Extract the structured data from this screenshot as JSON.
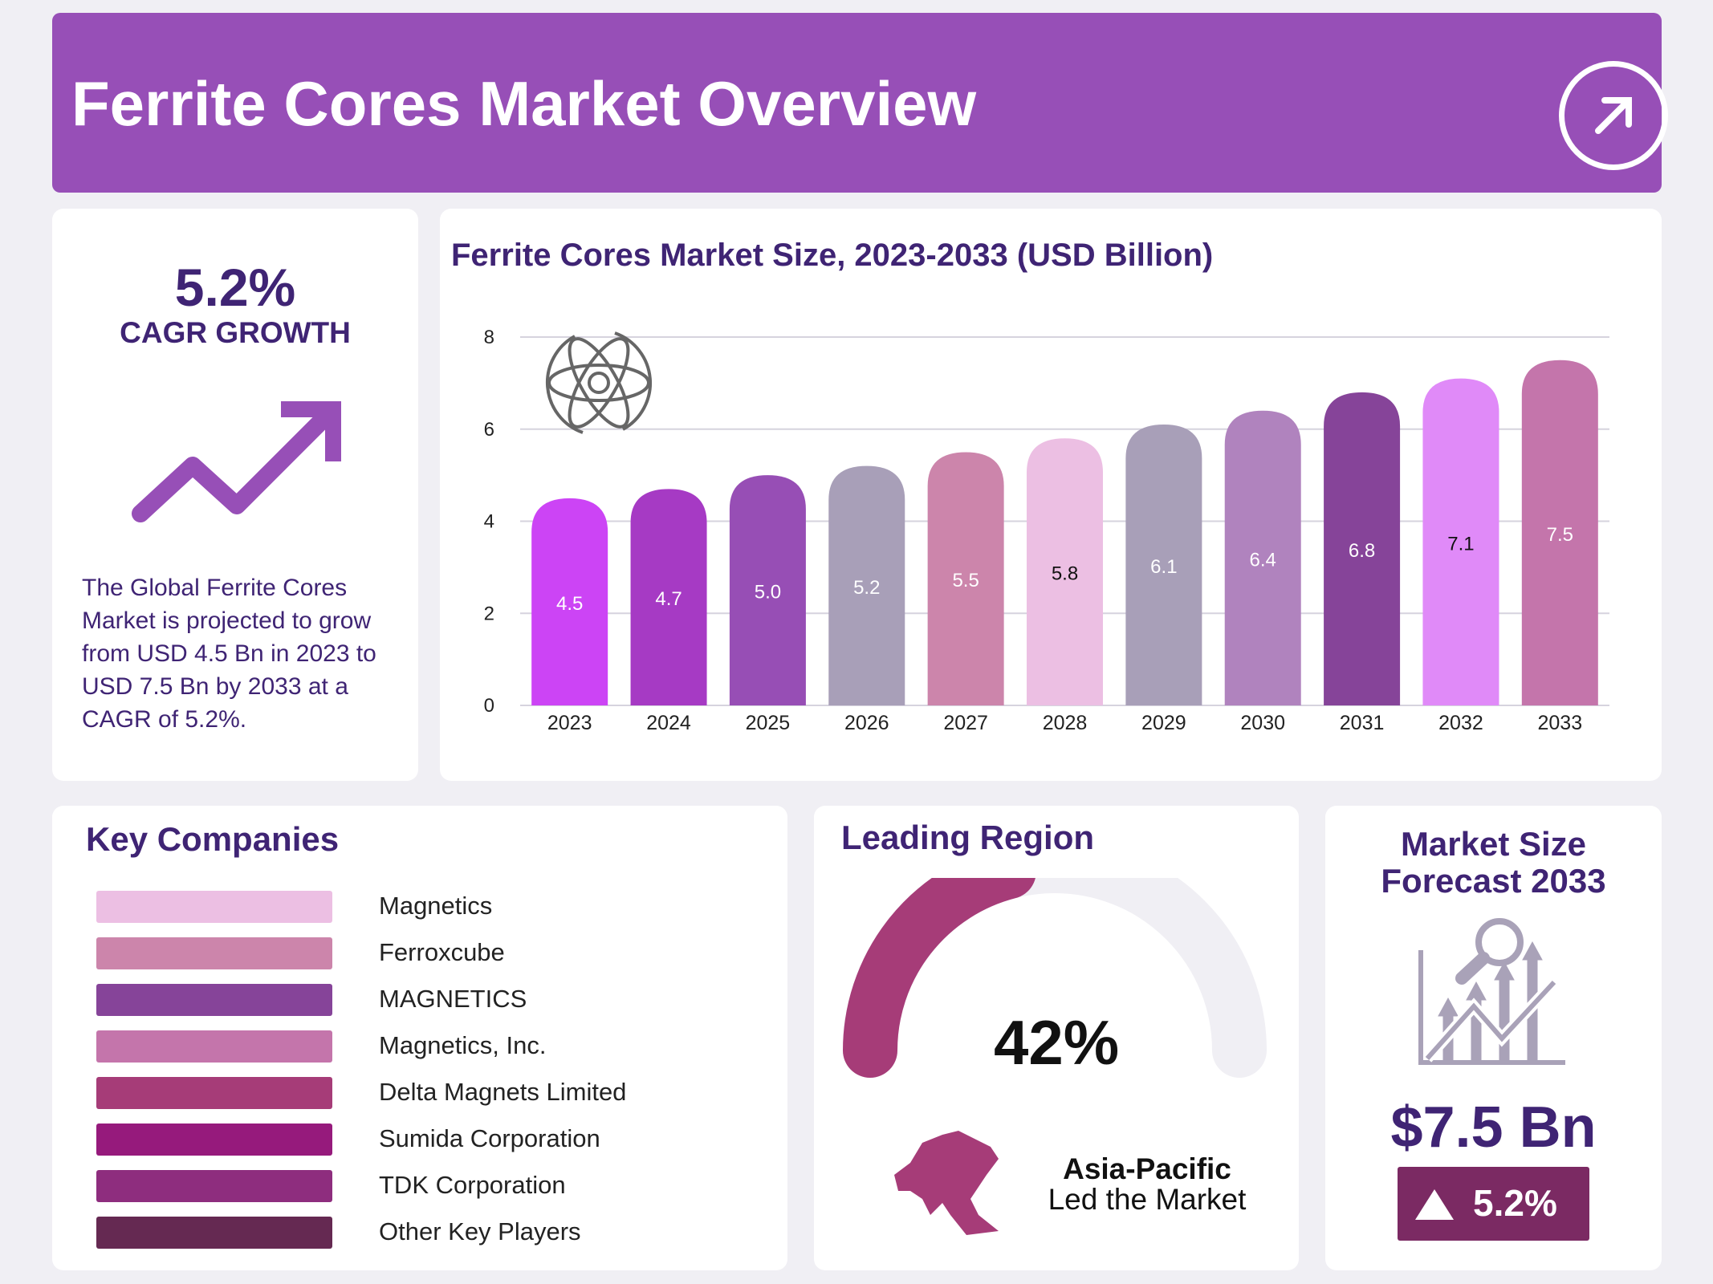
{
  "header": {
    "title": "Ferrite Cores Market Overview",
    "icon": "arrow-up-right-icon"
  },
  "cagr": {
    "value": "5.2%",
    "label": "CAGR GROWTH",
    "icon": "trend-up-arrow-icon",
    "description": "The Global Ferrite Cores Market is projected to grow from USD 4.5 Bn in 2023 to USD 7.5 Bn by 2033 at a CAGR of 5.2%."
  },
  "chart_data": {
    "type": "bar",
    "title": "Ferrite Cores Market Size, 2023-2033 (USD Billion)",
    "categories": [
      "2023",
      "2024",
      "2025",
      "2026",
      "2027",
      "2028",
      "2029",
      "2030",
      "2031",
      "2032",
      "2033"
    ],
    "values": [
      4.5,
      4.7,
      5.0,
      5.2,
      5.5,
      5.8,
      6.1,
      6.4,
      6.8,
      7.1,
      7.5
    ],
    "labels": [
      "4.5",
      "4.7",
      "5.0",
      "5.2",
      "5.5",
      "5.8",
      "6.1",
      "6.4",
      "6.8",
      "7.1",
      "7.5"
    ],
    "colors": [
      "#cc44f5",
      "#a63ac4",
      "#974eb5",
      "#a89fb8",
      "#cc85ab",
      "#ecbfe3",
      "#a89fb8",
      "#b083be",
      "#864499",
      "#e08af8",
      "#c475ab"
    ],
    "label_colors": [
      "#fff",
      "#fff",
      "#fff",
      "#fff",
      "#fff",
      "#111",
      "#fff",
      "#fff",
      "#fff",
      "#111",
      "#fff"
    ],
    "yticks": [
      "0",
      "2",
      "4",
      "6",
      "8"
    ],
    "ylim": [
      0,
      8
    ],
    "xlabel": "",
    "ylabel": "",
    "grid": true,
    "legend": "none",
    "icon": "atom-cycle-icon"
  },
  "companies": {
    "title": "Key Companies",
    "items": [
      {
        "name": "Magnetics",
        "color": "#ecbfe3"
      },
      {
        "name": "Ferroxcube",
        "color": "#cc85ab"
      },
      {
        "name": "MAGNETICS",
        "color": "#864499"
      },
      {
        "name": "Magnetics, Inc.",
        "color": "#c475ab"
      },
      {
        "name": "Delta Magnets Limited",
        "color": "#a63c78"
      },
      {
        "name": "Sumida Corporation",
        "color": "#961a7c"
      },
      {
        "name": "TDK Corporation",
        "color": "#8e2d7e"
      },
      {
        "name": "Other Key Players",
        "color": "#652952"
      }
    ]
  },
  "region": {
    "title": "Leading Region",
    "share": "42%",
    "share_value": 42,
    "name": "Asia-Pacific",
    "subtitle": "Led the Market",
    "color": "#a63c78",
    "icon": "asia-map-icon"
  },
  "forecast": {
    "title_line1": "Market Size",
    "title_line2": "Forecast 2033",
    "value": "$7.5 Bn",
    "growth": "5.2%",
    "icon": "analytics-chart-icon",
    "badge_color": "#7b2a63"
  }
}
